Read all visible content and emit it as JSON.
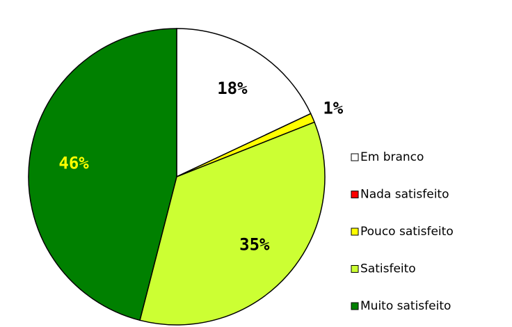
{
  "chart_data": {
    "type": "pie",
    "categories": [
      "Em branco",
      "Nada satisfeito",
      "Pouco satisfeito",
      "Satisfeito",
      "Muito satisfeito"
    ],
    "values": [
      18,
      0,
      1,
      35,
      46
    ],
    "value_labels": [
      "18%",
      null,
      "1%",
      "35%",
      "46%"
    ],
    "colors": [
      "#ffffff",
      "#ff0000",
      "#ffff00",
      "#ccff33",
      "#008000"
    ],
    "label_colors": [
      "#000000",
      "#000000",
      "#000000",
      "#000000",
      "#ffff00"
    ],
    "legend": "right"
  }
}
